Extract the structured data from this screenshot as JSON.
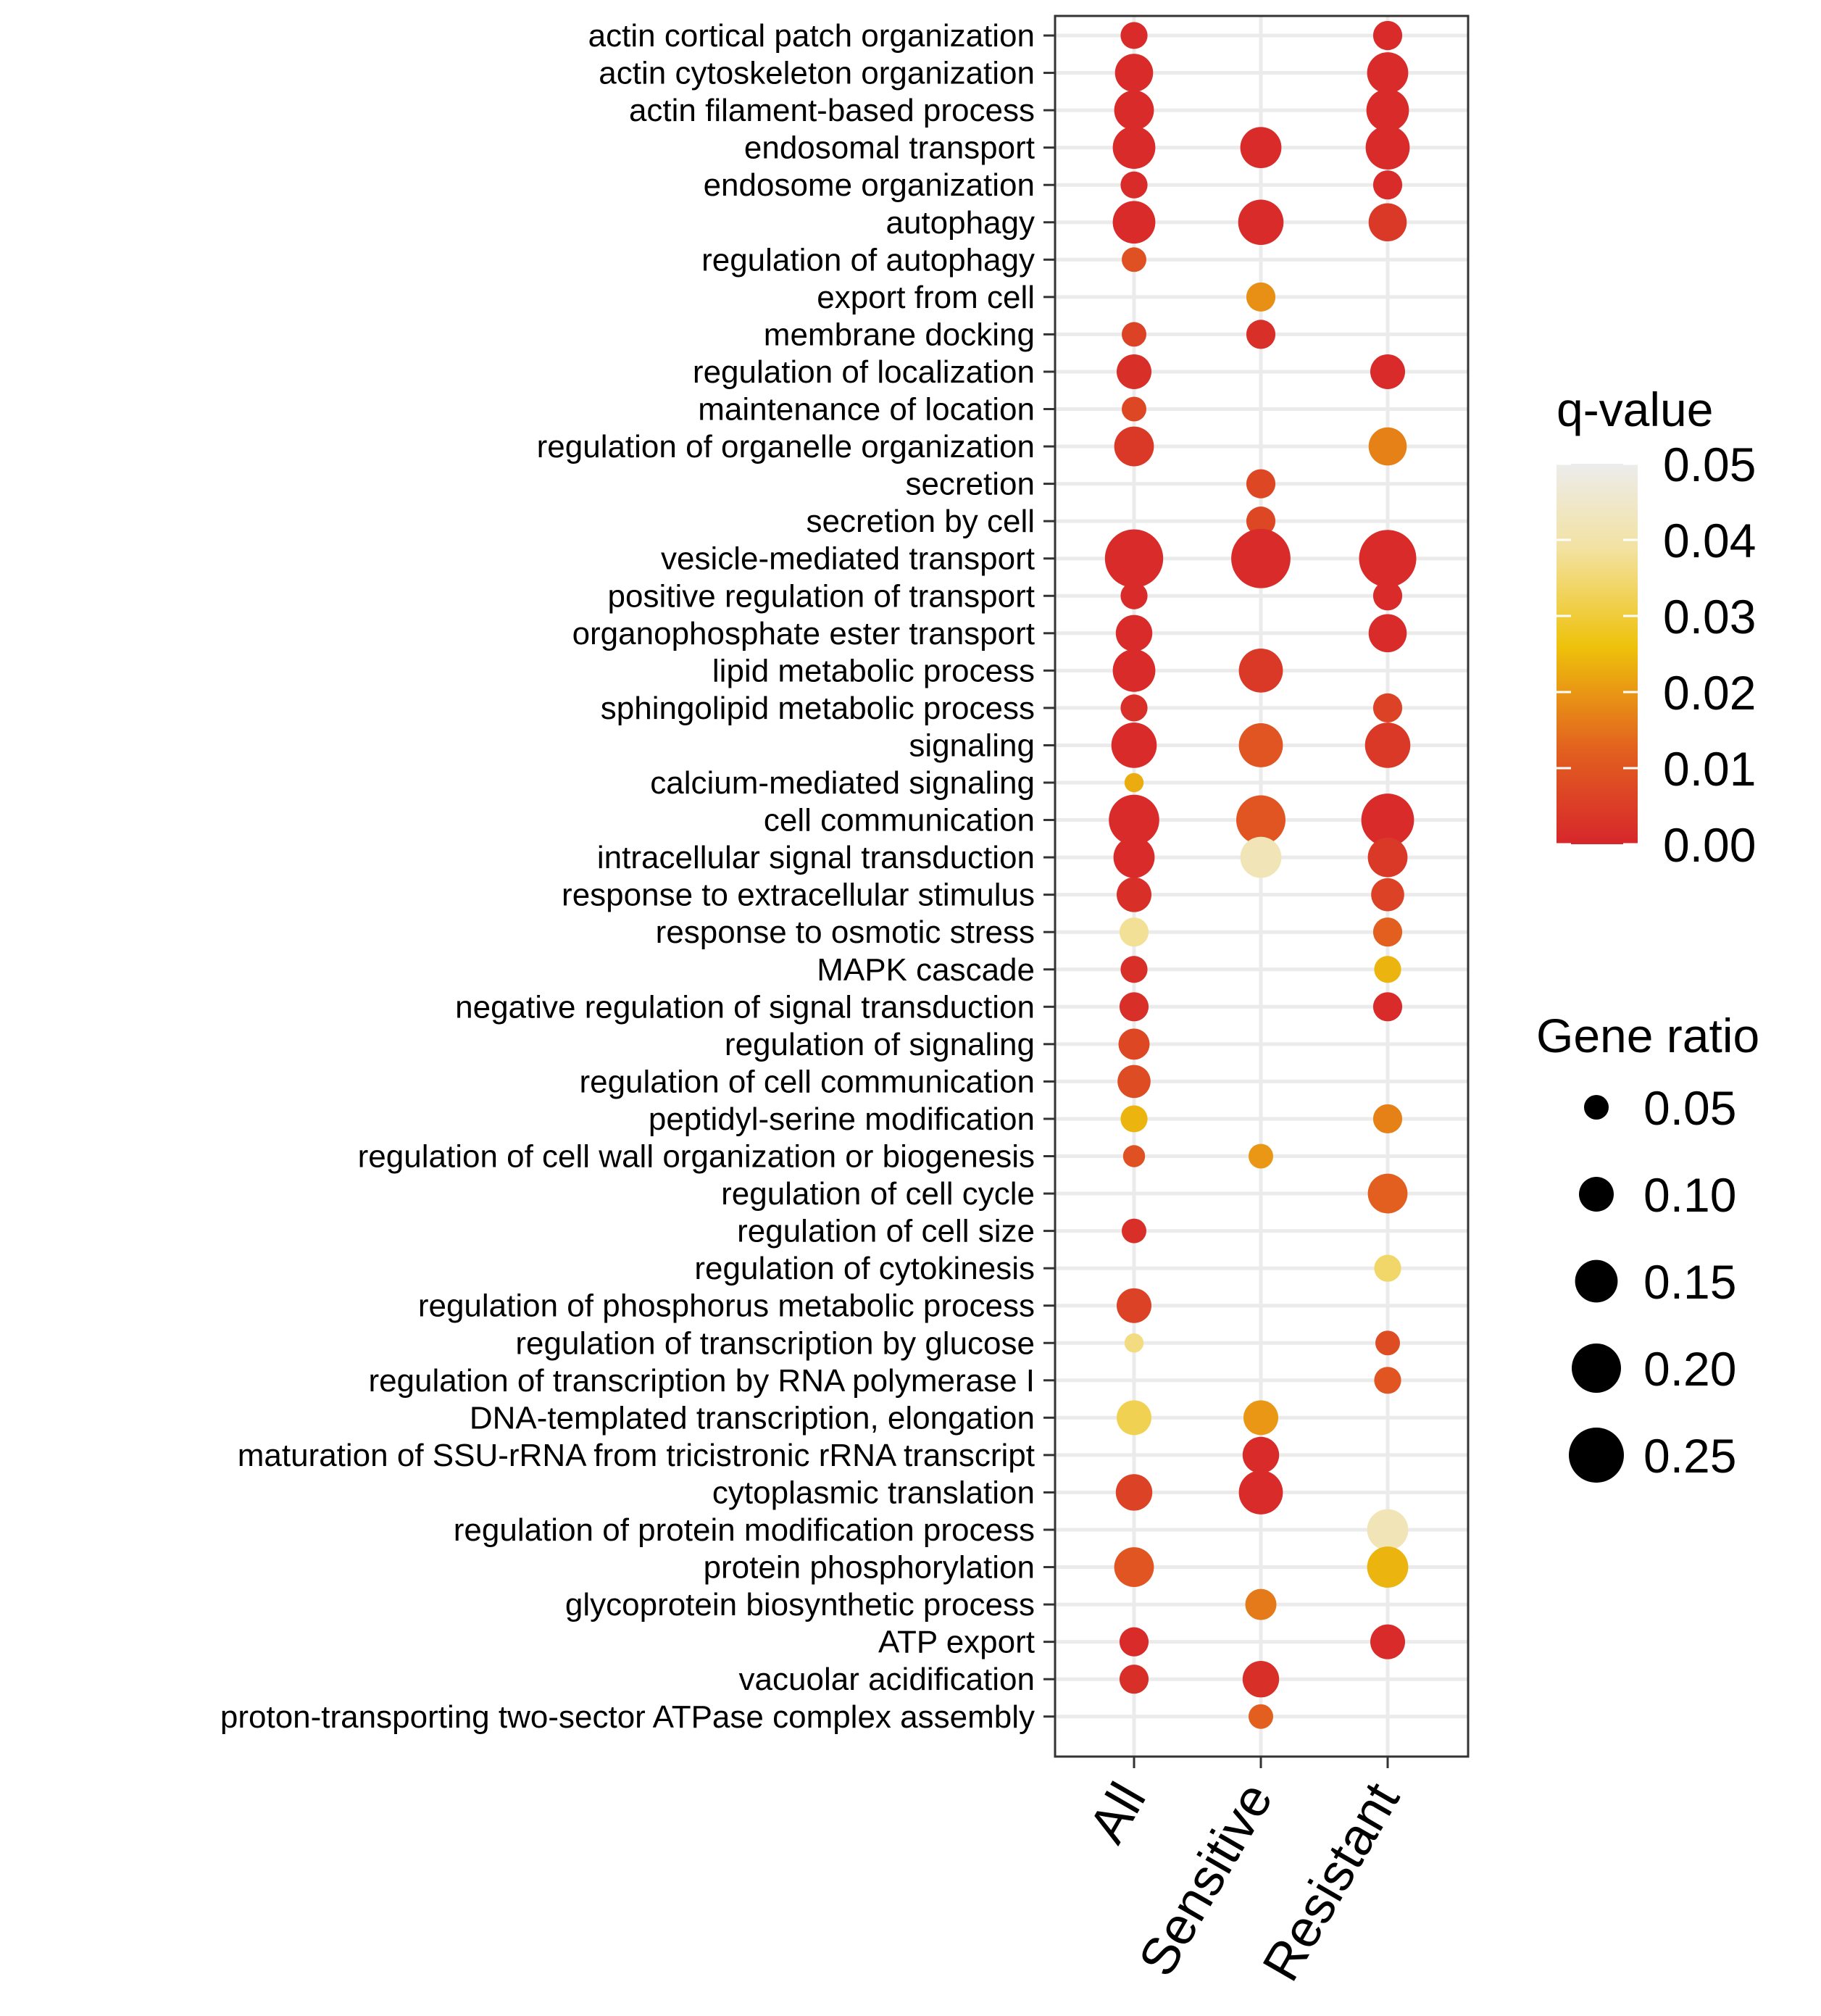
{
  "chart_data": {
    "type": "scatter",
    "subtype": "dot plot",
    "x_categories": [
      "All",
      "Sensitive",
      "Resistant"
    ],
    "x_category_colors": [
      "#000000",
      "#9b59b6",
      "#f5a623"
    ],
    "y_categories": [
      "actin cortical patch organization",
      "actin cytoskeleton organization",
      "actin filament-based process",
      "endosomal transport",
      "endosome organization",
      "autophagy",
      "regulation of autophagy",
      "export from cell",
      "membrane docking",
      "regulation of localization",
      "maintenance of location",
      "regulation of organelle organization",
      "secretion",
      "secretion by cell",
      "vesicle-mediated transport",
      "positive regulation of transport",
      "organophosphate ester transport",
      "lipid metabolic process",
      "sphingolipid metabolic process",
      "signaling",
      "calcium-mediated signaling",
      "cell communication",
      "intracellular signal transduction",
      "response to extracellular stimulus",
      "response to osmotic stress",
      "MAPK cascade",
      "negative regulation of signal transduction",
      "regulation of signaling",
      "regulation of cell communication",
      "peptidyl-serine modification",
      "regulation of cell wall organization or biogenesis",
      "regulation of cell cycle",
      "regulation of cell size",
      "regulation of cytokinesis",
      "regulation of phosphorus metabolic process",
      "regulation of transcription by glucose",
      "regulation of transcription by RNA polymerase I",
      "DNA-templated transcription, elongation",
      "maturation of SSU-rRNA from tricistronic rRNA transcript",
      "cytoplasmic translation",
      "regulation of protein modification process",
      "protein phosphorylation",
      "glycoprotein biosynthetic process",
      "ATP export",
      "vacuolar acidification",
      "proton-transporting two-sector ATPase complex assembly"
    ],
    "points": [
      {
        "term": 0,
        "group": "All",
        "gene_ratio": 0.06,
        "q_value": 0.001
      },
      {
        "term": 0,
        "group": "Resistant",
        "gene_ratio": 0.07,
        "q_value": 0.001
      },
      {
        "term": 1,
        "group": "All",
        "gene_ratio": 0.12,
        "q_value": 0.001
      },
      {
        "term": 1,
        "group": "Resistant",
        "gene_ratio": 0.14,
        "q_value": 0.001
      },
      {
        "term": 2,
        "group": "All",
        "gene_ratio": 0.13,
        "q_value": 0.001
      },
      {
        "term": 2,
        "group": "Resistant",
        "gene_ratio": 0.15,
        "q_value": 0.001
      },
      {
        "term": 3,
        "group": "All",
        "gene_ratio": 0.15,
        "q_value": 0.001
      },
      {
        "term": 3,
        "group": "Sensitive",
        "gene_ratio": 0.14,
        "q_value": 0.001
      },
      {
        "term": 3,
        "group": "Resistant",
        "gene_ratio": 0.16,
        "q_value": 0.001
      },
      {
        "term": 4,
        "group": "All",
        "gene_ratio": 0.06,
        "q_value": 0.001
      },
      {
        "term": 4,
        "group": "Resistant",
        "gene_ratio": 0.07,
        "q_value": 0.001
      },
      {
        "term": 5,
        "group": "All",
        "gene_ratio": 0.15,
        "q_value": 0.001
      },
      {
        "term": 5,
        "group": "Sensitive",
        "gene_ratio": 0.17,
        "q_value": 0.001
      },
      {
        "term": 5,
        "group": "Resistant",
        "gene_ratio": 0.12,
        "q_value": 0.004
      },
      {
        "term": 6,
        "group": "All",
        "gene_ratio": 0.05,
        "q_value": 0.009
      },
      {
        "term": 7,
        "group": "Sensitive",
        "gene_ratio": 0.07,
        "q_value": 0.019
      },
      {
        "term": 8,
        "group": "All",
        "gene_ratio": 0.05,
        "q_value": 0.006
      },
      {
        "term": 8,
        "group": "Sensitive",
        "gene_ratio": 0.07,
        "q_value": 0.002
      },
      {
        "term": 9,
        "group": "All",
        "gene_ratio": 0.1,
        "q_value": 0.002
      },
      {
        "term": 9,
        "group": "Resistant",
        "gene_ratio": 0.1,
        "q_value": 0.001
      },
      {
        "term": 10,
        "group": "All",
        "gene_ratio": 0.05,
        "q_value": 0.007
      },
      {
        "term": 10,
        "group": "Resistant",
        "gene_ratio": null,
        "q_value": null
      },
      {
        "term": 11,
        "group": "All",
        "gene_ratio": 0.13,
        "q_value": 0.004
      },
      {
        "term": 11,
        "group": "Resistant",
        "gene_ratio": 0.12,
        "q_value": 0.017
      },
      {
        "term": 12,
        "group": "Sensitive",
        "gene_ratio": 0.07,
        "q_value": 0.007
      },
      {
        "term": 13,
        "group": "Sensitive",
        "gene_ratio": 0.07,
        "q_value": 0.007
      },
      {
        "term": 14,
        "group": "All",
        "gene_ratio": 0.28,
        "q_value": 0.001
      },
      {
        "term": 14,
        "group": "Sensitive",
        "gene_ratio": 0.29,
        "q_value": 0.001
      },
      {
        "term": 14,
        "group": "Resistant",
        "gene_ratio": 0.27,
        "q_value": 0.001
      },
      {
        "term": 15,
        "group": "All",
        "gene_ratio": 0.06,
        "q_value": 0.001
      },
      {
        "term": 15,
        "group": "Resistant",
        "gene_ratio": 0.07,
        "q_value": 0.001
      },
      {
        "term": 16,
        "group": "All",
        "gene_ratio": 0.11,
        "q_value": 0.001
      },
      {
        "term": 16,
        "group": "Resistant",
        "gene_ratio": 0.12,
        "q_value": 0.001
      },
      {
        "term": 17,
        "group": "All",
        "gene_ratio": 0.15,
        "q_value": 0.001
      },
      {
        "term": 17,
        "group": "Sensitive",
        "gene_ratio": 0.16,
        "q_value": 0.004
      },
      {
        "term": 18,
        "group": "All",
        "gene_ratio": 0.06,
        "q_value": 0.002
      },
      {
        "term": 18,
        "group": "Resistant",
        "gene_ratio": 0.07,
        "q_value": 0.006
      },
      {
        "term": 19,
        "group": "All",
        "gene_ratio": 0.17,
        "q_value": 0.001
      },
      {
        "term": 19,
        "group": "Sensitive",
        "gene_ratio": 0.16,
        "q_value": 0.01
      },
      {
        "term": 19,
        "group": "Resistant",
        "gene_ratio": 0.17,
        "q_value": 0.004
      },
      {
        "term": 20,
        "group": "All",
        "gene_ratio": 0.03,
        "q_value": 0.023
      },
      {
        "term": 21,
        "group": "All",
        "gene_ratio": 0.21,
        "q_value": 0.001
      },
      {
        "term": 21,
        "group": "Sensitive",
        "gene_ratio": 0.2,
        "q_value": 0.01
      },
      {
        "term": 21,
        "group": "Resistant",
        "gene_ratio": 0.23,
        "q_value": 0.001
      },
      {
        "term": 22,
        "group": "All",
        "gene_ratio": 0.14,
        "q_value": 0.001
      },
      {
        "term": 22,
        "group": "Sensitive",
        "gene_ratio": 0.14,
        "q_value": 0.042
      },
      {
        "term": 22,
        "group": "Resistant",
        "gene_ratio": 0.13,
        "q_value": 0.004
      },
      {
        "term": 23,
        "group": "All",
        "gene_ratio": 0.1,
        "q_value": 0.002
      },
      {
        "term": 23,
        "group": "Resistant",
        "gene_ratio": 0.09,
        "q_value": 0.006
      },
      {
        "term": 24,
        "group": "All",
        "gene_ratio": 0.07,
        "q_value": 0.038
      },
      {
        "term": 24,
        "group": "Resistant",
        "gene_ratio": 0.07,
        "q_value": 0.012
      },
      {
        "term": 25,
        "group": "All",
        "gene_ratio": 0.06,
        "q_value": 0.002
      },
      {
        "term": 25,
        "group": "Resistant",
        "gene_ratio": 0.06,
        "q_value": 0.024
      },
      {
        "term": 26,
        "group": "All",
        "gene_ratio": 0.07,
        "q_value": 0.002
      },
      {
        "term": 26,
        "group": "Resistant",
        "gene_ratio": 0.07,
        "q_value": 0.001
      },
      {
        "term": 27,
        "group": "All",
        "gene_ratio": 0.08,
        "q_value": 0.007
      },
      {
        "term": 28,
        "group": "All",
        "gene_ratio": 0.09,
        "q_value": 0.008
      },
      {
        "term": 29,
        "group": "All",
        "gene_ratio": 0.06,
        "q_value": 0.024
      },
      {
        "term": 29,
        "group": "Resistant",
        "gene_ratio": 0.07,
        "q_value": 0.017
      },
      {
        "term": 30,
        "group": "All",
        "gene_ratio": 0.04,
        "q_value": 0.009
      },
      {
        "term": 30,
        "group": "Sensitive",
        "gene_ratio": 0.05,
        "q_value": 0.02
      },
      {
        "term": 31,
        "group": "Resistant",
        "gene_ratio": 0.13,
        "q_value": 0.012
      },
      {
        "term": 32,
        "group": "All",
        "gene_ratio": 0.05,
        "q_value": 0.002
      },
      {
        "term": 33,
        "group": "Resistant",
        "gene_ratio": 0.06,
        "q_value": 0.034
      },
      {
        "term": 34,
        "group": "All",
        "gene_ratio": 0.1,
        "q_value": 0.006
      },
      {
        "term": 35,
        "group": "All",
        "gene_ratio": 0.03,
        "q_value": 0.036
      },
      {
        "term": 35,
        "group": "Resistant",
        "gene_ratio": 0.05,
        "q_value": 0.008
      },
      {
        "term": 36,
        "group": "Resistant",
        "gene_ratio": 0.06,
        "q_value": 0.01
      },
      {
        "term": 37,
        "group": "All",
        "gene_ratio": 0.1,
        "q_value": 0.032
      },
      {
        "term": 37,
        "group": "Sensitive",
        "gene_ratio": 0.1,
        "q_value": 0.02
      },
      {
        "term": 38,
        "group": "Sensitive",
        "gene_ratio": 0.11,
        "q_value": 0.001
      },
      {
        "term": 39,
        "group": "All",
        "gene_ratio": 0.11,
        "q_value": 0.006
      },
      {
        "term": 39,
        "group": "Sensitive",
        "gene_ratio": 0.16,
        "q_value": 0.001
      },
      {
        "term": 40,
        "group": "Resistant",
        "gene_ratio": 0.14,
        "q_value": 0.042
      },
      {
        "term": 41,
        "group": "All",
        "gene_ratio": 0.13,
        "q_value": 0.01
      },
      {
        "term": 41,
        "group": "Resistant",
        "gene_ratio": 0.14,
        "q_value": 0.024
      },
      {
        "term": 42,
        "group": "Sensitive",
        "gene_ratio": 0.08,
        "q_value": 0.016
      },
      {
        "term": 43,
        "group": "All",
        "gene_ratio": 0.07,
        "q_value": 0.001
      },
      {
        "term": 43,
        "group": "Resistant",
        "gene_ratio": 0.1,
        "q_value": 0.001
      },
      {
        "term": 44,
        "group": "All",
        "gene_ratio": 0.07,
        "q_value": 0.002
      },
      {
        "term": 44,
        "group": "Sensitive",
        "gene_ratio": 0.11,
        "q_value": 0.002
      },
      {
        "term": 45,
        "group": "Sensitive",
        "gene_ratio": 0.05,
        "q_value": 0.012
      }
    ],
    "color_legend": {
      "title": "q-value",
      "ticks": [
        "0.05",
        "0.04",
        "0.03",
        "0.02",
        "0.01",
        "0.00"
      ],
      "range": [
        0,
        0.05
      ],
      "colors": [
        "#d7262b",
        "#e2611f",
        "#eec20b",
        "#f3e2a3",
        "#ececec"
      ]
    },
    "size_legend": {
      "title": "Gene ratio",
      "values": [
        0.05,
        0.1,
        0.15,
        0.2,
        0.25
      ],
      "labels": [
        "0.05",
        "0.10",
        "0.15",
        "0.20",
        "0.25"
      ]
    },
    "grid": true
  }
}
